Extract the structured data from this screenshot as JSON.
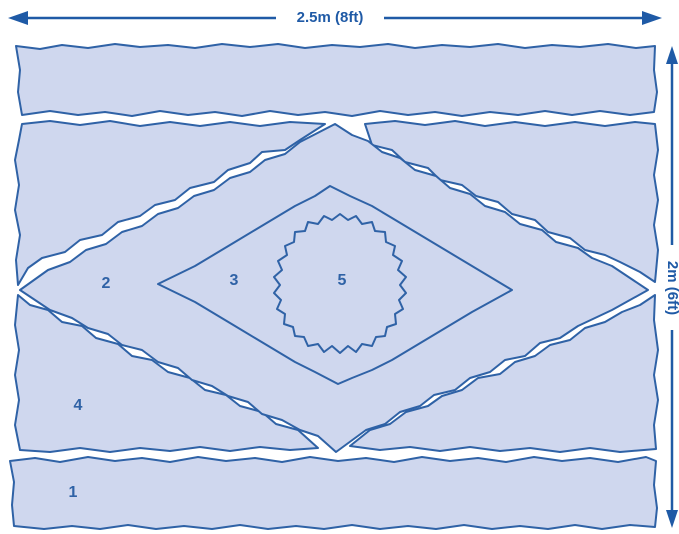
{
  "dimensions": {
    "width_label": "2.5m (8ft)",
    "height_label": "2m (6ft)"
  },
  "regions": [
    {
      "id": "1",
      "label": "1"
    },
    {
      "id": "2",
      "label": "2"
    },
    {
      "id": "3",
      "label": "3"
    },
    {
      "id": "4",
      "label": "4"
    },
    {
      "id": "5",
      "label": "5"
    }
  ],
  "colors": {
    "fill": "#cfd7ee",
    "outline": "#2f62a6",
    "arrow": "#1f5aa6",
    "background": "#ffffff"
  }
}
